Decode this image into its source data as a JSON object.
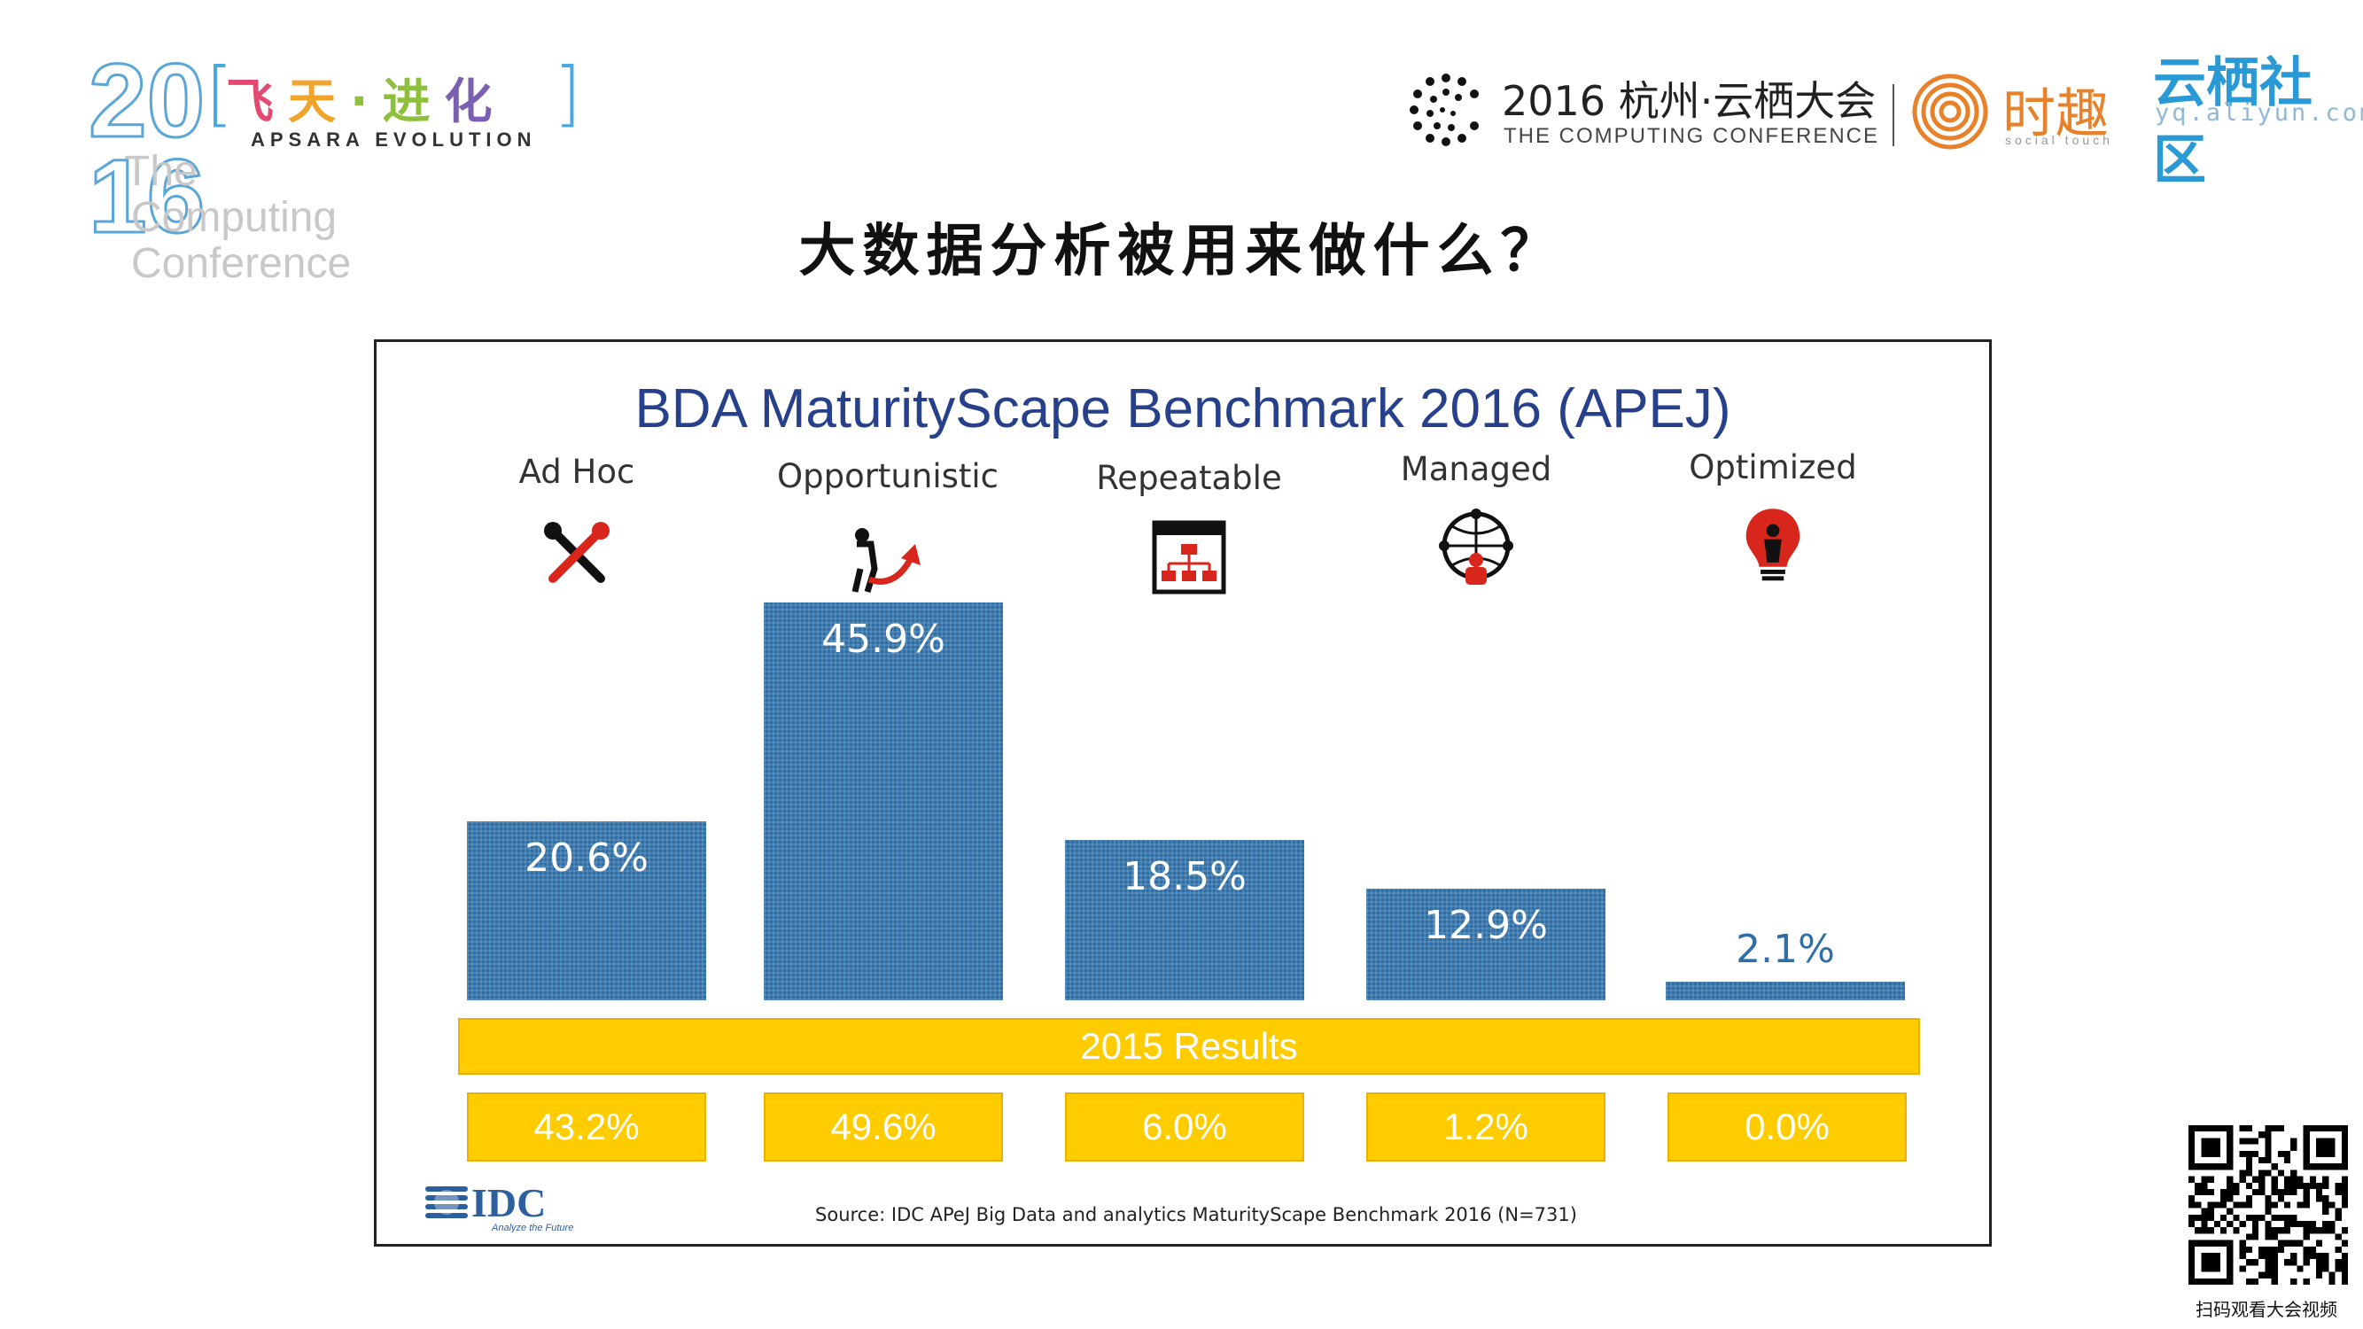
{
  "header": {
    "year_top": "20",
    "year_bottom": "16",
    "apsara_cn": [
      "飞",
      "天",
      "·",
      "进",
      "化"
    ],
    "apsara_en": "APSARA EVOLUTION",
    "conf_sub_1": "The",
    "conf_sub_2": "Computing",
    "conf_sub_3": "Conference",
    "yunqi_title": "2016 杭州·云栖大会",
    "yunqi_subtitle": "THE COMPUTING CONFERENCE",
    "shiqu_title": "时趣",
    "shiqu_subtitle": "social touch",
    "ysq_title": "云栖社区",
    "ysq_url": "yq.aliyun.com"
  },
  "slide_title": "大数据分析被用来做什么？",
  "chart_data": {
    "type": "bar",
    "title": "BDA MaturityScape Benchmark 2016 (APEJ)",
    "categories": [
      "Ad Hoc",
      "Opportunistic",
      "Repeatable",
      "Managed",
      "Optimized"
    ],
    "icons": [
      "tools-icon",
      "growth-arrow-icon",
      "org-chart-icon",
      "network-people-icon",
      "lightbulb-person-icon"
    ],
    "series": [
      {
        "values": [
          20.6,
          45.9,
          18.5,
          12.9,
          2.1
        ]
      }
    ],
    "value_labels": [
      "20.6%",
      "45.9%",
      "18.5%",
      "12.9%",
      "2.1%"
    ],
    "ylim": [
      0,
      46
    ],
    "comparison_label": "2015 Results",
    "comparison_values": [
      43.2,
      49.6,
      6.0,
      1.2,
      0.0
    ],
    "comparison_labels": [
      "43.2%",
      "49.6%",
      "6.0%",
      "1.2%",
      "0.0%"
    ],
    "source": "Source: IDC APeJ Big Data and analytics MaturityScape Benchmark 2016 (N=731)",
    "publisher_logo": "IDC",
    "publisher_tagline": "Analyze the Future",
    "colors": {
      "bar": "#2f6fa6",
      "title": "#27408b",
      "highlight": "#ffcc00",
      "small_value_label": "#2f6fa6"
    }
  },
  "qr": {
    "caption": "扫码观看大会视频"
  }
}
